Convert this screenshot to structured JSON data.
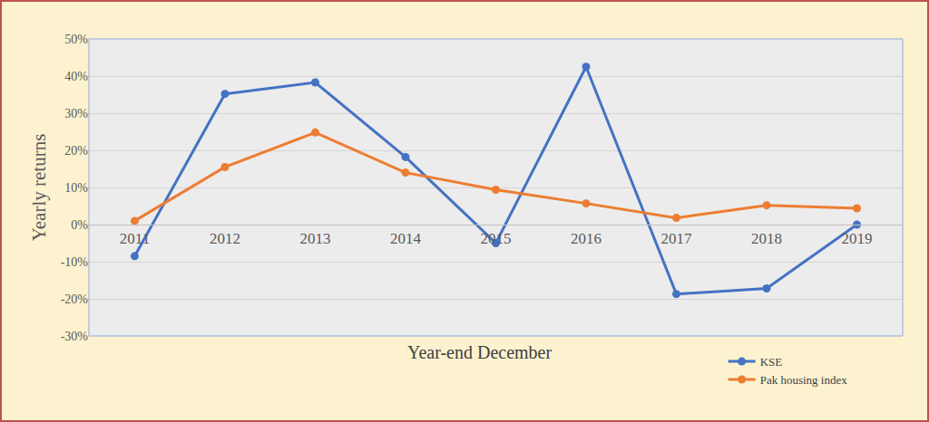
{
  "chart_data": {
    "type": "line",
    "x_label": "Year-end December",
    "y_label": "Yearly returns",
    "categories": [
      "2011",
      "2012",
      "2013",
      "2014",
      "2015",
      "2016",
      "2017",
      "2018",
      "2019"
    ],
    "series": [
      {
        "name": "KSE",
        "color": "#4472c4",
        "marker": "circle",
        "values": [
          -8.5,
          35.2,
          38.3,
          18.2,
          -5.0,
          42.5,
          -18.7,
          -17.2,
          0.0
        ]
      },
      {
        "name": "Pak housing index",
        "color": "#ed7d31",
        "marker": "circle",
        "values": [
          1.0,
          15.5,
          24.8,
          14.0,
          9.4,
          5.7,
          1.8,
          5.2,
          4.4
        ]
      }
    ],
    "ylim": [
      -30,
      50
    ],
    "yticks": [
      {
        "value": -30,
        "label": "-30%"
      },
      {
        "value": -20,
        "label": "-20%"
      },
      {
        "value": -10,
        "label": "-10%"
      },
      {
        "value": 0,
        "label": "0%"
      },
      {
        "value": 10,
        "label": "10%"
      },
      {
        "value": 20,
        "label": "20%"
      },
      {
        "value": 30,
        "label": "30%"
      },
      {
        "value": 40,
        "label": "40%"
      },
      {
        "value": 50,
        "label": "50%"
      }
    ],
    "grid": true,
    "legend": "lower right"
  }
}
